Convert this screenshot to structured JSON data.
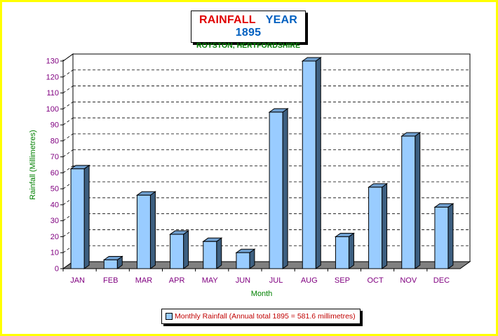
{
  "title": {
    "main_red": "RAINFALL",
    "main_blue": "YEAR 1895",
    "subtitle": "ROYSTON, HERTFORDSHIRE"
  },
  "legend": {
    "label": "Monthly Rainfall (Annual total 1895 = 581.6 millimetres)"
  },
  "colors": {
    "bar_front": "#99ccff",
    "bar_side": "#3d5f80",
    "floor": "#808080",
    "frame": "#ffff00",
    "tick_label": "#800080",
    "axis_title": "#008000"
  },
  "chart_data": {
    "type": "bar",
    "title": "RAINFALL YEAR 1895",
    "subtitle": "ROYSTON, HERTFORDSHIRE",
    "xlabel": "Month",
    "ylabel": "Rainfall (Millimetres)",
    "categories": [
      "JAN",
      "FEB",
      "MAR",
      "APR",
      "MAY",
      "JUN",
      "JUL",
      "AUG",
      "SEP",
      "OCT",
      "NOV",
      "DEC"
    ],
    "series": [
      {
        "name": "Monthly Rainfall (Annual total 1895 = 581.6 millimetres)",
        "values": [
          62.5,
          5.5,
          46,
          21.5,
          17,
          10,
          98,
          130,
          20,
          51,
          83,
          38.5
        ]
      }
    ],
    "ylim": [
      0,
      130
    ],
    "yticks": [
      0,
      10,
      20,
      30,
      40,
      50,
      60,
      70,
      80,
      90,
      100,
      110,
      120,
      130
    ],
    "grid": true,
    "legend_position": "bottom"
  }
}
